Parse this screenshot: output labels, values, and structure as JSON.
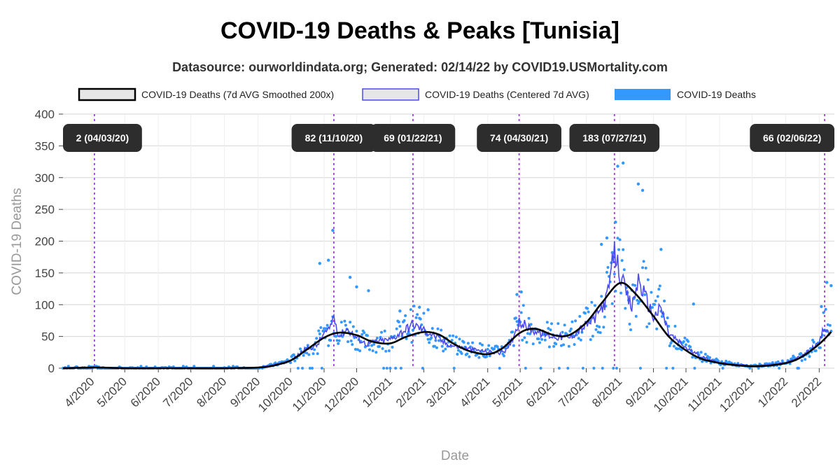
{
  "chart_data": {
    "type": "line",
    "title": "COVID-19 Deaths & Peaks [Tunisia]",
    "subtitle": "Datasource: ourworldindata.org; Generated: 02/14/22 by COVID19.USMortality.com",
    "xlabel": "Date",
    "ylabel": "COVID-19 Deaths",
    "xlim": [
      "2020-03-05",
      "2022-02-15"
    ],
    "ylim": [
      0,
      400
    ],
    "yticks": [
      0,
      50,
      100,
      150,
      200,
      250,
      300,
      350,
      400
    ],
    "xticks": [
      {
        "date": "2020-04-01",
        "label": "4/2020"
      },
      {
        "date": "2020-05-01",
        "label": "5/2020"
      },
      {
        "date": "2020-06-01",
        "label": "6/2020"
      },
      {
        "date": "2020-07-01",
        "label": "7/2020"
      },
      {
        "date": "2020-08-01",
        "label": "8/2020"
      },
      {
        "date": "2020-09-01",
        "label": "9/2020"
      },
      {
        "date": "2020-10-01",
        "label": "10/2020"
      },
      {
        "date": "2020-11-01",
        "label": "11/2020"
      },
      {
        "date": "2020-12-01",
        "label": "12/2020"
      },
      {
        "date": "2021-01-01",
        "label": "1/2021"
      },
      {
        "date": "2021-02-01",
        "label": "2/2021"
      },
      {
        "date": "2021-03-01",
        "label": "3/2021"
      },
      {
        "date": "2021-04-01",
        "label": "4/2021"
      },
      {
        "date": "2021-05-01",
        "label": "5/2021"
      },
      {
        "date": "2021-06-01",
        "label": "6/2021"
      },
      {
        "date": "2021-07-01",
        "label": "7/2021"
      },
      {
        "date": "2021-08-01",
        "label": "8/2021"
      },
      {
        "date": "2021-09-01",
        "label": "9/2021"
      },
      {
        "date": "2021-10-01",
        "label": "10/2021"
      },
      {
        "date": "2021-11-01",
        "label": "11/2021"
      },
      {
        "date": "2021-12-01",
        "label": "12/2021"
      },
      {
        "date": "2022-01-01",
        "label": "1/2022"
      },
      {
        "date": "2022-02-01",
        "label": "2/2022"
      }
    ],
    "grid": true,
    "legend_position": "top",
    "legend": [
      {
        "label": "COVID-19 Deaths (7d AVG Smoothed 200x)",
        "color": "#000000",
        "swatch": "smoothed"
      },
      {
        "label": "COVID-19 Deaths (Centered 7d AVG)",
        "color": "#4b4bf0",
        "swatch": "avg7"
      },
      {
        "label": "COVID-19 Deaths",
        "color": "#3399ff",
        "swatch": "daily"
      }
    ],
    "peaks": [
      {
        "date": "2020-04-03",
        "label": "2 (04/03/20)",
        "value": 2
      },
      {
        "date": "2020-11-10",
        "label": "82 (11/10/20)",
        "value": 82
      },
      {
        "date": "2021-01-22",
        "label": "69 (01/22/21)",
        "value": 69
      },
      {
        "date": "2021-04-30",
        "label": "74 (04/30/21)",
        "value": 74
      },
      {
        "date": "2021-07-27",
        "label": "183 (07/27/21)",
        "value": 183
      },
      {
        "date": "2022-02-06",
        "label": "66 (02/06/22)",
        "value": 66
      }
    ],
    "series": [
      {
        "name": "COVID-19 Deaths (7d AVG Smoothed 200x)",
        "color": "#000000",
        "x": [
          "2020-03-05",
          "2020-04-05",
          "2020-05-01",
          "2020-06-01",
          "2020-07-01",
          "2020-08-01",
          "2020-09-01",
          "2020-09-15",
          "2020-10-01",
          "2020-10-15",
          "2020-11-01",
          "2020-11-15",
          "2020-12-01",
          "2020-12-15",
          "2021-01-01",
          "2021-01-15",
          "2021-02-01",
          "2021-02-15",
          "2021-03-01",
          "2021-03-15",
          "2021-04-01",
          "2021-04-15",
          "2021-05-01",
          "2021-05-15",
          "2021-06-01",
          "2021-06-15",
          "2021-07-01",
          "2021-07-15",
          "2021-08-01",
          "2021-08-15",
          "2021-09-01",
          "2021-09-15",
          "2021-10-01",
          "2021-10-15",
          "2021-11-01",
          "2021-11-15",
          "2021-12-01",
          "2021-12-15",
          "2022-01-01",
          "2022-01-15",
          "2022-02-01",
          "2022-02-12"
        ],
        "y": [
          0,
          1,
          0,
          0,
          0,
          0,
          1,
          4,
          12,
          28,
          48,
          56,
          52,
          42,
          39,
          49,
          57,
          53,
          38,
          27,
          22,
          32,
          56,
          62,
          52,
          52,
          72,
          102,
          134,
          118,
          82,
          50,
          28,
          15,
          8,
          5,
          3,
          4,
          8,
          17,
          38,
          57
        ]
      },
      {
        "name": "COVID-19 Deaths (Centered 7d AVG)",
        "color": "#4b4bf0",
        "x": [
          "2020-03-05",
          "2020-04-03",
          "2020-05-01",
          "2020-06-01",
          "2020-07-01",
          "2020-08-01",
          "2020-09-01",
          "2020-09-15",
          "2020-10-01",
          "2020-10-15",
          "2020-10-25",
          "2020-11-01",
          "2020-11-05",
          "2020-11-10",
          "2020-11-15",
          "2020-11-22",
          "2020-12-01",
          "2020-12-10",
          "2020-12-20",
          "2021-01-01",
          "2021-01-10",
          "2021-01-22",
          "2021-02-01",
          "2021-02-10",
          "2021-02-20",
          "2021-03-01",
          "2021-03-15",
          "2021-04-01",
          "2021-04-12",
          "2021-04-20",
          "2021-04-30",
          "2021-05-10",
          "2021-05-20",
          "2021-06-01",
          "2021-06-15",
          "2021-07-01",
          "2021-07-10",
          "2021-07-20",
          "2021-07-27",
          "2021-08-01",
          "2021-08-06",
          "2021-08-12",
          "2021-08-18",
          "2021-08-25",
          "2021-09-01",
          "2021-09-08",
          "2021-09-15",
          "2021-10-01",
          "2021-10-15",
          "2021-11-01",
          "2021-11-15",
          "2021-12-01",
          "2021-12-15",
          "2022-01-01",
          "2022-01-15",
          "2022-02-01",
          "2022-02-06",
          "2022-02-12"
        ],
        "y": [
          0,
          2,
          0,
          0,
          0,
          0,
          1,
          5,
          12,
          30,
          35,
          55,
          58,
          82,
          50,
          62,
          48,
          38,
          42,
          45,
          55,
          69,
          60,
          52,
          40,
          35,
          30,
          26,
          24,
          30,
          74,
          62,
          55,
          50,
          48,
          68,
          80,
          110,
          183,
          150,
          120,
          95,
          140,
          110,
          80,
          95,
          55,
          32,
          18,
          9,
          6,
          4,
          5,
          9,
          18,
          40,
          66,
          56
        ]
      },
      {
        "name": "COVID-19 Deaths",
        "color": "#3399ff",
        "x": [
          "2020-10-28",
          "2020-11-05",
          "2020-11-09",
          "2020-11-25",
          "2020-12-01",
          "2020-12-12",
          "2021-01-10",
          "2021-01-28",
          "2021-02-05",
          "2021-04-28",
          "2021-05-02",
          "2021-07-15",
          "2021-07-20",
          "2021-07-25",
          "2021-07-28",
          "2021-07-30",
          "2021-08-04",
          "2021-08-18",
          "2021-08-22",
          "2021-09-08",
          "2021-10-08",
          "2022-02-03",
          "2022-02-08",
          "2022-02-12"
        ],
        "y": [
          165,
          170,
          217,
          143,
          128,
          122,
          90,
          96,
          92,
          116,
          120,
          195,
          205,
          182,
          230,
          318,
          323,
          290,
          280,
          187,
          101,
          97,
          135,
          130
        ]
      }
    ]
  }
}
